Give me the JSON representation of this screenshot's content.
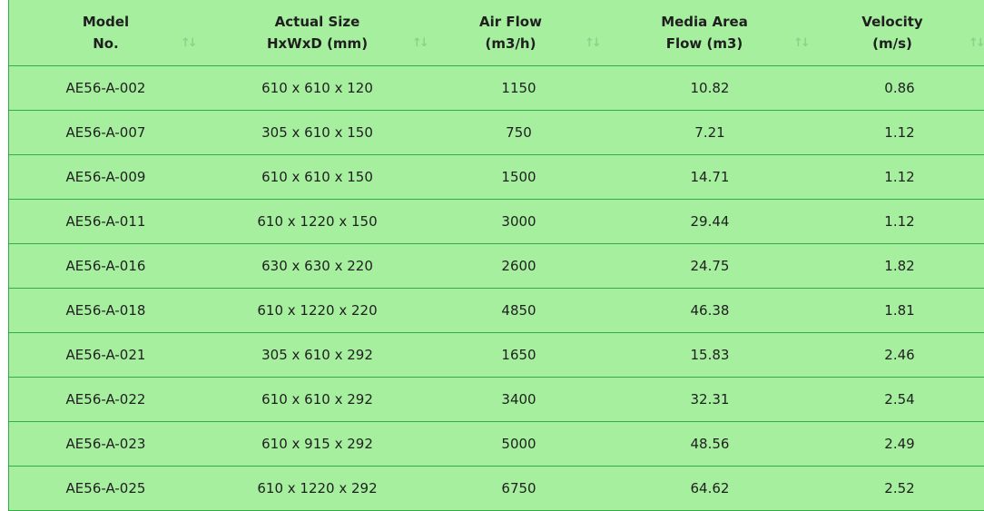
{
  "table": {
    "headers": [
      {
        "line1": "Model",
        "line2": "No."
      },
      {
        "line1": "Actual Size",
        "line2": "HxWxD (mm)"
      },
      {
        "line1": "Air Flow",
        "line2": "(m3/h)"
      },
      {
        "line1": "Media Area",
        "line2": "Flow (m3)"
      },
      {
        "line1": "Velocity",
        "line2": "(m/s)"
      }
    ],
    "sort_icon": "sort-arrows-icon",
    "rows": [
      [
        "AE56-A-002",
        "610 x 610 x 120",
        "1150",
        "10.82",
        "0.86"
      ],
      [
        "AE56-A-007",
        "305 x 610 x 150",
        "750",
        "7.21",
        "1.12"
      ],
      [
        "AE56-A-009",
        "610 x 610 x 150",
        "1500",
        "14.71",
        "1.12"
      ],
      [
        "AE56-A-011",
        "610 x 1220 x 150",
        "3000",
        "29.44",
        "1.12"
      ],
      [
        "AE56-A-016",
        "630 x 630 x 220",
        "2600",
        "24.75",
        "1.82"
      ],
      [
        "AE56-A-018",
        "610 x 1220 x 220",
        "4850",
        "46.38",
        "1.81"
      ],
      [
        "AE56-A-021",
        "305 x 610 x 292",
        "1650",
        "15.83",
        "2.46"
      ],
      [
        "AE56-A-022",
        "610 x 610 x 292",
        "3400",
        "32.31",
        "2.54"
      ],
      [
        "AE56-A-023",
        "610 x 915 x 292",
        "5000",
        "48.56",
        "2.49"
      ],
      [
        "AE56-A-025",
        "610 x 1220 x 292",
        "6750",
        "64.62",
        "2.52"
      ]
    ]
  },
  "colors": {
    "background": "#a6ef9f",
    "border": "#2fae45",
    "text": "#1f1f1f",
    "sort_icon": "#8fcf8f"
  }
}
